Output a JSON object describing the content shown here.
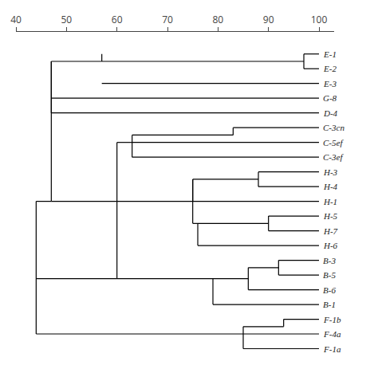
{
  "chart_data": {
    "type": "dendrogram",
    "categories": [
      "E-1",
      "E-2",
      "E-3",
      "G-8",
      "D-4",
      "C-3cn",
      "C-5ef",
      "C-3ef",
      "H-3",
      "H-4",
      "H-1",
      "H-5",
      "H-7",
      "H-6",
      "B-3",
      "B-5",
      "B-6",
      "B-1",
      "F-1b",
      "F-4a",
      "F-1a"
    ],
    "xlim": [
      40,
      103
    ],
    "xticks": [
      40,
      50,
      60,
      70,
      80,
      90,
      100
    ],
    "ylim": [
      0,
      22.5
    ],
    "color": "#000000",
    "grid": false,
    "segments": [
      {
        "x1": 100,
        "x2": 97,
        "y1": 21,
        "y2": 21
      },
      {
        "x1": 100,
        "x2": 97,
        "y1": 20,
        "y2": 20
      },
      {
        "x1": 97,
        "x2": 97,
        "y1": 21,
        "y2": 20
      },
      {
        "x1": 100,
        "x2": 57,
        "y1": 19,
        "y2": 19
      },
      {
        "x1": 97,
        "x2": 57,
        "y1": 20.5,
        "y2": 20.5
      },
      {
        "x1": 57,
        "x2": 57,
        "y1": 21,
        "y2": 20.5
      },
      {
        "x1": 100,
        "x2": 47,
        "y1": 18,
        "y2": 18
      },
      {
        "x1": 100,
        "x2": 47,
        "y1": 17,
        "y2": 17
      },
      {
        "x1": 47,
        "x2": 47,
        "y1": 20.5,
        "y2": 17
      },
      {
        "x1": 57,
        "x2": 47,
        "y1": 20.5,
        "y2": 20.5
      },
      {
        "x1": 100,
        "x2": 83,
        "y1": 16,
        "y2": 16
      },
      {
        "x1": 100,
        "x2": 63,
        "y1": 15,
        "y2": 15
      },
      {
        "x1": 100,
        "x2": 63,
        "y1": 14,
        "y2": 14
      },
      {
        "x1": 83,
        "x2": 83,
        "y1": 16,
        "y2": 15.5
      },
      {
        "x1": 83,
        "x2": 63,
        "y1": 15.5,
        "y2": 15.5
      },
      {
        "x1": 63,
        "x2": 63,
        "y1": 15.5,
        "y2": 14
      },
      {
        "x1": 100,
        "x2": 88,
        "y1": 13,
        "y2": 13
      },
      {
        "x1": 100,
        "x2": 88,
        "y1": 12,
        "y2": 12
      },
      {
        "x1": 88,
        "x2": 88,
        "y1": 13,
        "y2": 12
      },
      {
        "x1": 100,
        "x2": 75,
        "y1": 11,
        "y2": 11
      },
      {
        "x1": 88,
        "x2": 75,
        "y1": 12.5,
        "y2": 12.5
      },
      {
        "x1": 75,
        "x2": 75,
        "y1": 12.5,
        "y2": 11
      },
      {
        "x1": 100,
        "x2": 90,
        "y1": 10,
        "y2": 10
      },
      {
        "x1": 100,
        "x2": 90,
        "y1": 9,
        "y2": 9
      },
      {
        "x1": 90,
        "x2": 90,
        "y1": 10,
        "y2": 9
      },
      {
        "x1": 100,
        "x2": 76,
        "y1": 8,
        "y2": 8
      },
      {
        "x1": 90,
        "x2": 76,
        "y1": 9.5,
        "y2": 9.5
      },
      {
        "x1": 76,
        "x2": 76,
        "y1": 9.5,
        "y2": 8
      },
      {
        "x1": 76,
        "x2": 75,
        "y1": 9.5,
        "y2": 9.5
      },
      {
        "x1": 75,
        "x2": 75,
        "y1": 12.5,
        "y2": 9.5
      },
      {
        "x1": 75,
        "x2": 60,
        "y1": 11,
        "y2": 11
      },
      {
        "x1": 100,
        "x2": 92,
        "y1": 7,
        "y2": 7
      },
      {
        "x1": 100,
        "x2": 92,
        "y1": 6,
        "y2": 6
      },
      {
        "x1": 92,
        "x2": 92,
        "y1": 7,
        "y2": 6
      },
      {
        "x1": 100,
        "x2": 86,
        "y1": 5,
        "y2": 5
      },
      {
        "x1": 92,
        "x2": 86,
        "y1": 6.5,
        "y2": 6.5
      },
      {
        "x1": 86,
        "x2": 86,
        "y1": 6.5,
        "y2": 5
      },
      {
        "x1": 100,
        "x2": 79,
        "y1": 4,
        "y2": 4
      },
      {
        "x1": 86,
        "x2": 79,
        "y1": 5.75,
        "y2": 5.75
      },
      {
        "x1": 79,
        "x2": 79,
        "y1": 5.75,
        "y2": 4
      },
      {
        "x1": 79,
        "x2": 60,
        "y1": 5.75,
        "y2": 5.75
      },
      {
        "x1": 100,
        "x2": 93,
        "y1": 3,
        "y2": 3
      },
      {
        "x1": 100,
        "x2": 85,
        "y1": 2,
        "y2": 2
      },
      {
        "x1": 93,
        "x2": 93,
        "y1": 3,
        "y2": 2.5
      },
      {
        "x1": 93,
        "x2": 85,
        "y1": 2.5,
        "y2": 2.5
      },
      {
        "x1": 85,
        "x2": 85,
        "y1": 2.5,
        "y2": 2
      },
      {
        "x1": 100,
        "x2": 85,
        "y1": 1,
        "y2": 1
      },
      {
        "x1": 85,
        "x2": 85,
        "y1": 2,
        "y2": 1
      },
      {
        "x1": 85,
        "x2": 44,
        "y1": 2,
        "y2": 2
      },
      {
        "x1": 63,
        "x2": 60,
        "y1": 15,
        "y2": 15
      },
      {
        "x1": 60,
        "x2": 60,
        "y1": 15,
        "y2": 11
      },
      {
        "x1": 60,
        "x2": 60,
        "y1": 11,
        "y2": 5.75
      },
      {
        "x1": 60,
        "x2": 47,
        "y1": 11,
        "y2": 11
      },
      {
        "x1": 47,
        "x2": 47,
        "y1": 20.5,
        "y2": 11
      },
      {
        "x1": 47,
        "x2": 44,
        "y1": 11,
        "y2": 11
      },
      {
        "x1": 44,
        "x2": 44,
        "y1": 11,
        "y2": 2
      },
      {
        "x1": 44,
        "x2": 60,
        "y1": 5.75,
        "y2": 5.75
      }
    ]
  }
}
